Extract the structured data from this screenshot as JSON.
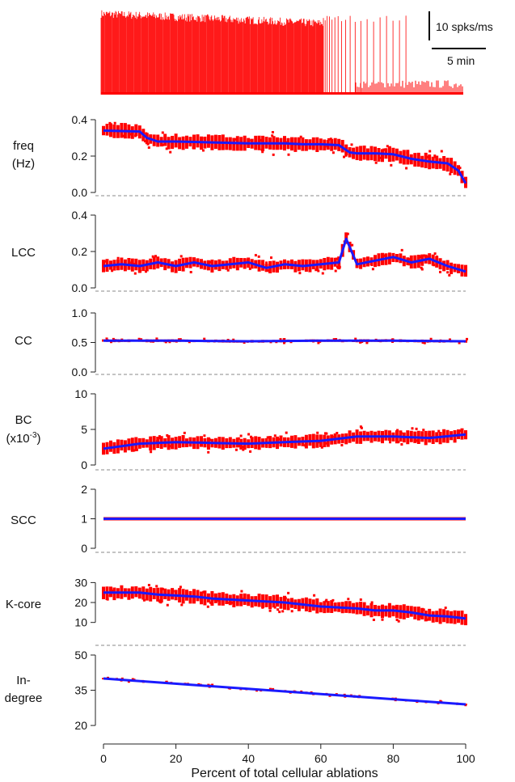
{
  "scalebar": {
    "vertical_label": "10 spks/ms",
    "horizontal_label": "5 min"
  },
  "colors": {
    "raw": "#ff0000",
    "mean": "#1a1aff",
    "axis": "#222222",
    "baseline": "#888888"
  },
  "chart_data": [
    {
      "type": "line",
      "name": "raster",
      "title": "",
      "note": "spike raster, activity decays with time"
    },
    {
      "type": "scatter",
      "ylabel_lines": [
        "freq",
        "(Hz)"
      ],
      "ylim": [
        0,
        0.4
      ],
      "yticks": [
        0.0,
        0.2,
        0.4
      ],
      "ytick_labels": [
        "0.0",
        "0.2",
        "0.4"
      ],
      "xlim": [
        0,
        100
      ],
      "spread": 0.035,
      "series": [
        {
          "x": [
            0,
            10,
            12,
            15,
            20,
            30,
            40,
            50,
            55,
            60,
            65,
            68,
            70,
            75,
            80,
            82,
            85,
            90,
            95,
            98,
            100
          ],
          "y": [
            0.34,
            0.335,
            0.3,
            0.28,
            0.28,
            0.275,
            0.27,
            0.27,
            0.265,
            0.265,
            0.26,
            0.22,
            0.215,
            0.215,
            0.21,
            0.2,
            0.185,
            0.17,
            0.16,
            0.12,
            0.05
          ]
        }
      ]
    },
    {
      "type": "scatter",
      "ylabel_lines": [
        "LCC"
      ],
      "ylim": [
        0,
        0.4
      ],
      "yticks": [
        0.0,
        0.2,
        0.4
      ],
      "ytick_labels": [
        "0.0",
        "0.2",
        "0.4"
      ],
      "xlim": [
        0,
        100
      ],
      "spread": 0.03,
      "series": [
        {
          "x": [
            0,
            5,
            10,
            15,
            20,
            25,
            30,
            35,
            40,
            45,
            50,
            55,
            60,
            65,
            67,
            70,
            75,
            80,
            85,
            90,
            95,
            100
          ],
          "y": [
            0.12,
            0.13,
            0.12,
            0.14,
            0.12,
            0.14,
            0.12,
            0.13,
            0.14,
            0.11,
            0.13,
            0.12,
            0.13,
            0.14,
            0.27,
            0.13,
            0.15,
            0.17,
            0.14,
            0.16,
            0.12,
            0.09
          ]
        }
      ]
    },
    {
      "type": "scatter",
      "ylabel_lines": [
        "CC"
      ],
      "ylim": [
        0,
        1.0
      ],
      "yticks": [
        0.0,
        0.5,
        1.0
      ],
      "ytick_labels": [
        "0.0",
        "0.5",
        "1.0"
      ],
      "xlim": [
        0,
        100
      ],
      "spread": 0.02,
      "series": [
        {
          "x": [
            0,
            20,
            40,
            60,
            80,
            100
          ],
          "y": [
            0.53,
            0.53,
            0.52,
            0.53,
            0.53,
            0.52
          ]
        }
      ]
    },
    {
      "type": "scatter",
      "ylabel_lines": [
        "BC",
        "(x10-3)"
      ],
      "ylim": [
        0,
        10
      ],
      "yticks": [
        0,
        5,
        10
      ],
      "ytick_labels": [
        "0",
        "5",
        "10"
      ],
      "xlim": [
        0,
        100
      ],
      "spread": 0.8,
      "series": [
        {
          "x": [
            0,
            10,
            20,
            30,
            40,
            50,
            60,
            70,
            80,
            90,
            100
          ],
          "y": [
            2.3,
            3.0,
            3.2,
            3.1,
            3.0,
            3.2,
            3.4,
            4.0,
            4.0,
            3.8,
            4.3
          ]
        }
      ]
    },
    {
      "type": "scatter",
      "ylabel_lines": [
        "SCC"
      ],
      "ylim": [
        0,
        2
      ],
      "yticks": [
        0,
        1,
        2
      ],
      "ytick_labels": [
        "0",
        "1",
        "2"
      ],
      "xlim": [
        0,
        100
      ],
      "spread": 0,
      "series": [
        {
          "x": [
            0,
            100
          ],
          "y": [
            1,
            1
          ]
        }
      ]
    },
    {
      "type": "scatter",
      "ylabel_lines": [
        "K-core"
      ],
      "ylim": [
        5,
        33
      ],
      "yticks": [
        10,
        20,
        30
      ],
      "ytick_labels": [
        "10",
        "20",
        "30"
      ],
      "xlim": [
        0,
        100
      ],
      "spread": 3,
      "series": [
        {
          "x": [
            0,
            10,
            15,
            20,
            25,
            30,
            40,
            50,
            55,
            60,
            70,
            75,
            80,
            85,
            90,
            95,
            100
          ],
          "y": [
            25,
            25,
            24,
            23.5,
            23,
            22,
            21,
            20,
            19,
            18,
            17,
            16,
            16,
            15,
            13.5,
            13,
            12
          ]
        }
      ]
    },
    {
      "type": "scatter",
      "ylabel_lines": [
        "In-",
        "degree"
      ],
      "ylim": [
        19,
        50
      ],
      "yticks": [
        20,
        35,
        50
      ],
      "ytick_labels": [
        "20",
        "35",
        "50"
      ],
      "xlabel": "Percent of total cellular ablations",
      "xlim": [
        0,
        100
      ],
      "xticks": [
        0,
        20,
        40,
        60,
        80,
        100
      ],
      "xtick_labels": [
        "0",
        "20",
        "40",
        "60",
        "80",
        "100"
      ],
      "spread": 0.3,
      "series": [
        {
          "x": [
            0,
            100
          ],
          "y": [
            40,
            29
          ]
        }
      ]
    }
  ]
}
